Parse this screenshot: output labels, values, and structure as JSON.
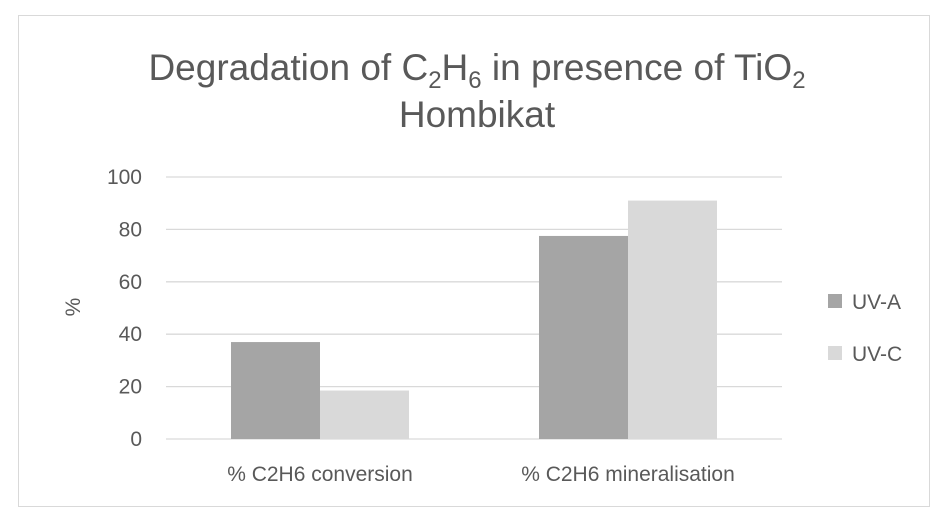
{
  "chart_data": {
    "type": "bar",
    "title": {
      "line1": [
        "Degradation of C",
        "2",
        "H",
        "6",
        " in presence of TiO",
        "2"
      ],
      "line2": "Hombikat"
    },
    "categories": [
      "% C2H6 conversion",
      "% C2H6 mineralisation"
    ],
    "series": [
      {
        "name": "UV-A",
        "values": [
          37,
          77.5
        ],
        "color": "#a5a5a5"
      },
      {
        "name": "UV-C",
        "values": [
          18.5,
          91
        ],
        "color": "#d9d9d9"
      }
    ],
    "ylabel": "%",
    "ylim": [
      0,
      100
    ],
    "yticks": [
      "0",
      "20",
      "40",
      "60",
      "80",
      "100"
    ],
    "grid": true,
    "legend_position": "right"
  }
}
